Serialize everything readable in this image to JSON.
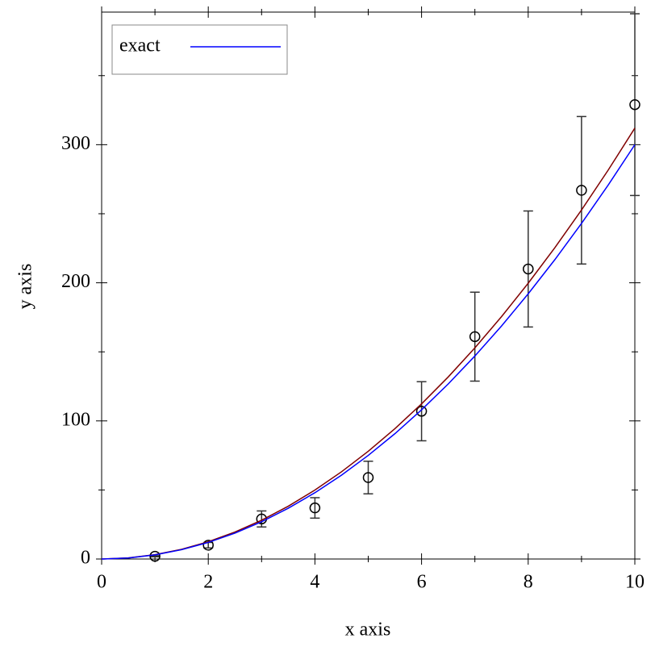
{
  "chart_data": {
    "type": "line",
    "xlabel": "x axis",
    "ylabel": "y axis",
    "xlim": [
      0,
      10
    ],
    "ylim": [
      0,
      396
    ],
    "xticks": [
      0,
      2,
      4,
      6,
      8,
      10
    ],
    "xminorticks": [
      1,
      3,
      5,
      7,
      9
    ],
    "yticks": [
      0,
      100,
      200,
      300
    ],
    "yminorticks": [
      50,
      150,
      250,
      350
    ],
    "legend": "top-left",
    "series": [
      {
        "type": "points",
        "color": "#000000",
        "errcolor": "#333333",
        "x": [
          1,
          2,
          3,
          4,
          5,
          6,
          7,
          8,
          9,
          10
        ],
        "values": [
          2,
          10,
          29,
          37,
          59,
          107,
          161,
          210,
          267,
          329
        ],
        "errors": [
          0.4,
          2,
          5.8,
          7.4,
          11.8,
          21.4,
          32.2,
          42,
          53.4,
          65.8
        ]
      },
      {
        "type": "line",
        "color": "#800000",
        "x": [
          0,
          0.5,
          1,
          1.5,
          2,
          2.5,
          3,
          3.5,
          4,
          4.5,
          5,
          5.5,
          6,
          6.5,
          7,
          7.5,
          8,
          8.5,
          9,
          9.5,
          10
        ],
        "values": [
          0,
          0.78,
          3.12,
          7.02,
          12.48,
          19.5,
          28.08,
          38.22,
          49.92,
          63.18,
          78,
          94.38,
          112.32,
          131.82,
          152.88,
          175.5,
          199.68,
          225.42,
          252.72,
          281.58,
          312
        ]
      },
      {
        "type": "line",
        "name": "exact",
        "color": "#0000ff",
        "x": [
          0,
          0.5,
          1,
          1.5,
          2,
          2.5,
          3,
          3.5,
          4,
          4.5,
          5,
          5.5,
          6,
          6.5,
          7,
          7.5,
          8,
          8.5,
          9,
          9.5,
          10
        ],
        "values": [
          0,
          0.75,
          3,
          6.75,
          12,
          18.75,
          27,
          36.75,
          48,
          60.75,
          75,
          90.75,
          108,
          126.75,
          147,
          168.75,
          192,
          216.75,
          243,
          270.75,
          300
        ]
      }
    ]
  }
}
